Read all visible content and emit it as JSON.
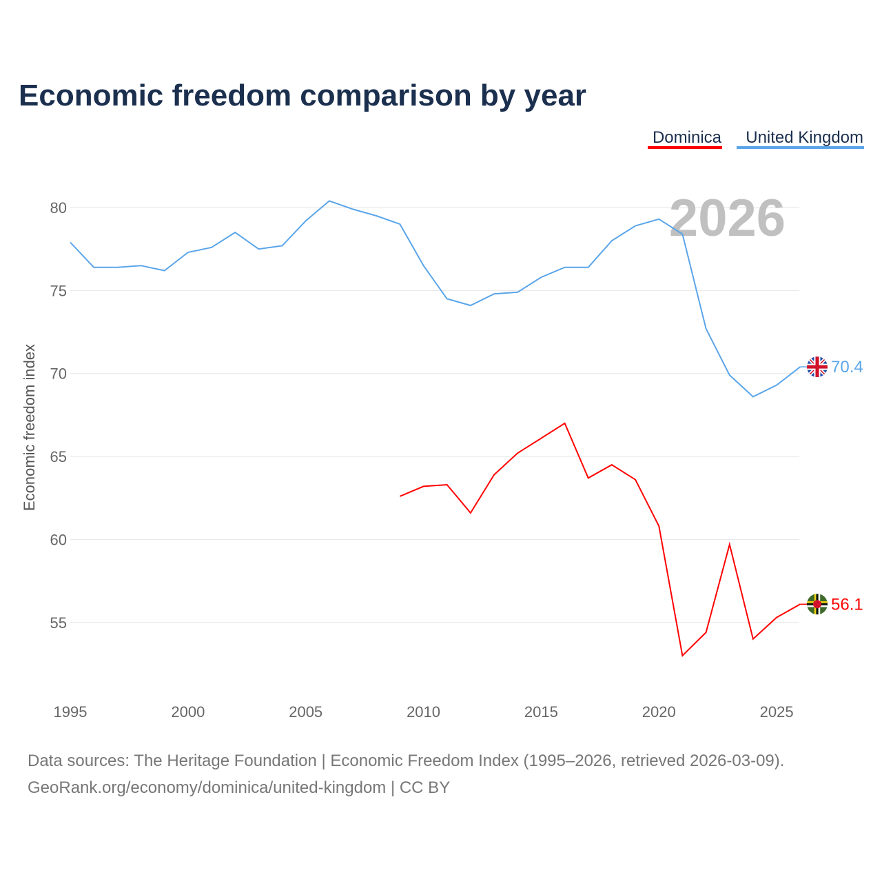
{
  "chart_data": {
    "type": "line",
    "title": "Economic freedom comparison by year",
    "ylabel": "Economic freedom index",
    "xlabel": "",
    "year_watermark": "2026",
    "xlim": [
      1995,
      2026
    ],
    "ylim": [
      51,
      82
    ],
    "x_ticks": [
      1995,
      2000,
      2005,
      2010,
      2015,
      2020,
      2025
    ],
    "y_ticks": [
      55,
      60,
      65,
      70,
      75,
      80
    ],
    "grid": true,
    "legend_position": "top-right",
    "series": [
      {
        "name": "Dominica",
        "color": "#ff0000",
        "end_label": "56.1",
        "x": [
          2009,
          2010,
          2011,
          2012,
          2013,
          2014,
          2015,
          2016,
          2017,
          2018,
          2019,
          2020,
          2021,
          2022,
          2023,
          2024,
          2025,
          2026
        ],
        "values": [
          62.6,
          63.2,
          63.3,
          61.6,
          63.9,
          65.2,
          66.1,
          67.0,
          63.7,
          64.5,
          63.6,
          60.8,
          53.0,
          54.4,
          59.7,
          54.0,
          55.3,
          56.1
        ]
      },
      {
        "name": "United Kingdom",
        "color": "#5aa5ea",
        "end_label": "70.4",
        "x": [
          1995,
          1996,
          1997,
          1998,
          1999,
          2000,
          2001,
          2002,
          2003,
          2004,
          2005,
          2006,
          2007,
          2008,
          2009,
          2010,
          2011,
          2012,
          2013,
          2014,
          2015,
          2016,
          2017,
          2018,
          2019,
          2020,
          2021,
          2022,
          2023,
          2024,
          2025,
          2026
        ],
        "values": [
          77.9,
          76.4,
          76.4,
          76.5,
          76.2,
          77.3,
          77.6,
          78.5,
          77.5,
          77.7,
          79.2,
          80.4,
          79.9,
          79.5,
          79.0,
          76.5,
          74.5,
          74.1,
          74.8,
          74.9,
          75.8,
          76.4,
          76.4,
          78.0,
          78.9,
          79.3,
          78.4,
          72.7,
          69.9,
          68.6,
          69.3,
          70.4
        ]
      }
    ]
  },
  "footer": {
    "line1": "Data sources: The Heritage Foundation | Economic Freedom Index (1995–2026, retrieved 2026-03-09).",
    "line2": "GeoRank.org/economy/dominica/united-kingdom | CC BY"
  },
  "icons": {
    "uk": "uk-flag-icon",
    "dominica": "dominica-flag-icon"
  }
}
